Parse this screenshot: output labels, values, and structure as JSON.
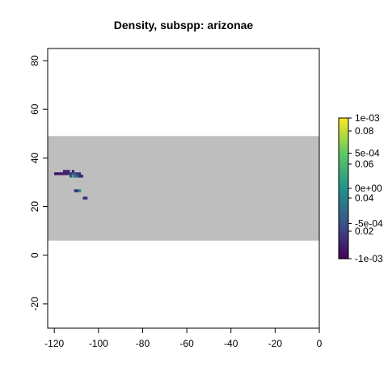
{
  "title": "Density, subspp: arizonae",
  "chart_data": {
    "type": "heatmap",
    "title": "Density, subspp: arizonae",
    "xlabel": "",
    "ylabel": "",
    "xlim": [
      -123,
      0
    ],
    "ylim": [
      -30,
      85
    ],
    "x_ticks": [
      -120,
      -100,
      -80,
      -60,
      -40,
      -20,
      0
    ],
    "y_ticks": [
      -20,
      0,
      20,
      40,
      60,
      80
    ],
    "x_tick_labels": [
      "-120",
      "-100",
      "-80",
      "-60",
      "-40",
      "-20",
      "0"
    ],
    "y_tick_labels": [
      "-20",
      "0",
      "20",
      "40",
      "60",
      "80"
    ],
    "grid": false,
    "background_band": {
      "y_from": 6,
      "y_to": 49,
      "color": "#bebebe"
    },
    "colorbar": {
      "position": "right",
      "colors": [
        "#440154",
        "#3b528b",
        "#21918c",
        "#5ec962",
        "#fde725"
      ],
      "labels_inner": [
        "0.02",
        "0.04",
        "0.06",
        "0.08"
      ],
      "labels_outer": [
        "-1e-03",
        "-5e-04",
        "0e+00",
        "5e-04",
        "1e-03"
      ]
    },
    "cells": [
      {
        "x": -120,
        "y": 33,
        "value": 0.005
      },
      {
        "x": -119,
        "y": 33,
        "value": 0.005
      },
      {
        "x": -118,
        "y": 33,
        "value": 0.006
      },
      {
        "x": -117,
        "y": 33,
        "value": 0.008
      },
      {
        "x": -116,
        "y": 33,
        "value": 0.01
      },
      {
        "x": -116,
        "y": 34,
        "value": 0.008
      },
      {
        "x": -115,
        "y": 34,
        "value": 0.012
      },
      {
        "x": -114,
        "y": 34,
        "value": 0.01
      },
      {
        "x": -115,
        "y": 33,
        "value": 0.01
      },
      {
        "x": -114,
        "y": 33,
        "value": 0.012
      },
      {
        "x": -113,
        "y": 33,
        "value": 0.015
      },
      {
        "x": -112,
        "y": 33,
        "value": 0.025
      },
      {
        "x": -111,
        "y": 33,
        "value": 0.02
      },
      {
        "x": -113,
        "y": 32,
        "value": 0.02
      },
      {
        "x": -112,
        "y": 32,
        "value": 0.055
      },
      {
        "x": -111,
        "y": 32,
        "value": 0.035
      },
      {
        "x": -110,
        "y": 32,
        "value": 0.03
      },
      {
        "x": -109,
        "y": 32,
        "value": 0.012
      },
      {
        "x": -108,
        "y": 32,
        "value": 0.01
      },
      {
        "x": -110,
        "y": 33,
        "value": 0.015
      },
      {
        "x": -109,
        "y": 33,
        "value": 0.012
      },
      {
        "x": -112,
        "y": 34,
        "value": 0.01
      },
      {
        "x": -111,
        "y": 26,
        "value": 0.012
      },
      {
        "x": -110,
        "y": 26,
        "value": 0.01
      },
      {
        "x": -109,
        "y": 26,
        "value": 0.045
      },
      {
        "x": -107,
        "y": 23,
        "value": 0.01
      },
      {
        "x": -106,
        "y": 23,
        "value": 0.012
      }
    ]
  }
}
